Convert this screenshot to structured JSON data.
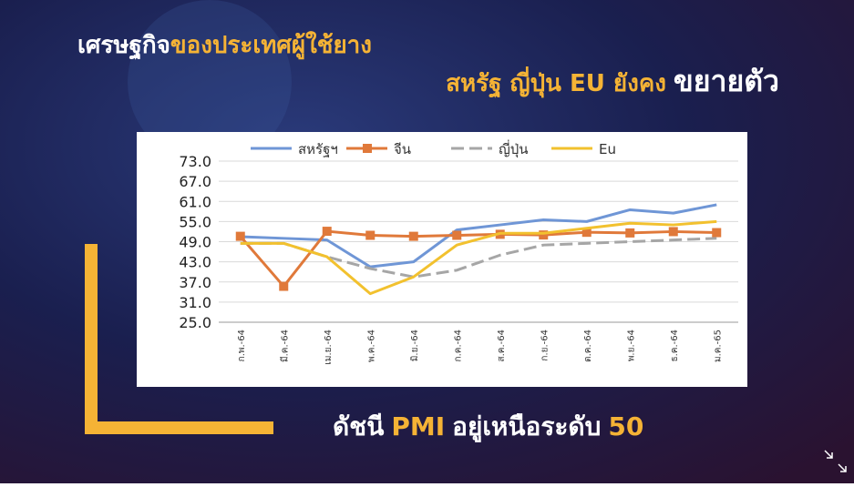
{
  "chart_data": {
    "type": "line",
    "title_parts": [
      "เศรษฐกิจ",
      "ของประเทศผู้ใช้ยาง"
    ],
    "subtitle_parts": [
      "สหรัฐ ญี่ปุ่น EU ยังคง",
      "ขยายตัว"
    ],
    "footer_parts": [
      "ดัชนี",
      "PMI",
      "อยู่เหนือระดับ",
      "50"
    ],
    "categories": [
      "ก.พ.-64",
      "มี.ค.-64",
      "เม.ย.-64",
      "พ.ค.-64",
      "มิ.ย.-64",
      "ก.ค.-64",
      "ส.ค.-64",
      "ก.ย.-64",
      "ต.ค.-64",
      "พ.ย.-64",
      "ธ.ค.-64",
      "ม.ค.-65"
    ],
    "series": [
      {
        "name": "สหรัฐฯ",
        "color": "#6f96d6",
        "style": "solid",
        "marker": false,
        "values": [
          50.5,
          50,
          49.5,
          41.5,
          43,
          52.5,
          54,
          55.5,
          55,
          58.5,
          57.5,
          60
        ]
      },
      {
        "name": "จีน",
        "color": "#e0793a",
        "style": "solid",
        "marker": true,
        "values": [
          50.6,
          35.7,
          52.1,
          50.9,
          50.6,
          50.9,
          51.2,
          51,
          51.8,
          51.6,
          52,
          51.7
        ]
      },
      {
        "name": "ญี่ปุ่น",
        "color": "#a6a6a6",
        "style": "dashed",
        "marker": false,
        "values": [
          48.5,
          48.5,
          44.5,
          41,
          38.5,
          40.5,
          45,
          48,
          48.5,
          49,
          49.5,
          50
        ]
      },
      {
        "name": "Eu",
        "color": "#f2c12e",
        "style": "solid",
        "marker": false,
        "values": [
          48.5,
          48.5,
          44.5,
          33.5,
          38.5,
          48,
          51.5,
          51.5,
          53,
          54.5,
          54,
          55
        ]
      }
    ],
    "ylim": [
      25,
      73
    ],
    "yticks": [
      {
        "value": 25,
        "label": "25.0"
      },
      {
        "value": 31,
        "label": "31.0"
      },
      {
        "value": 37,
        "label": "37.0"
      },
      {
        "value": 43,
        "label": "43.0"
      },
      {
        "value": 49,
        "label": "49.0"
      },
      {
        "value": 55,
        "label": "55.0"
      },
      {
        "value": 61,
        "label": "61.0"
      },
      {
        "value": 67,
        "label": "67.0"
      },
      {
        "value": 73,
        "label": "73.0"
      }
    ],
    "grid": true
  }
}
